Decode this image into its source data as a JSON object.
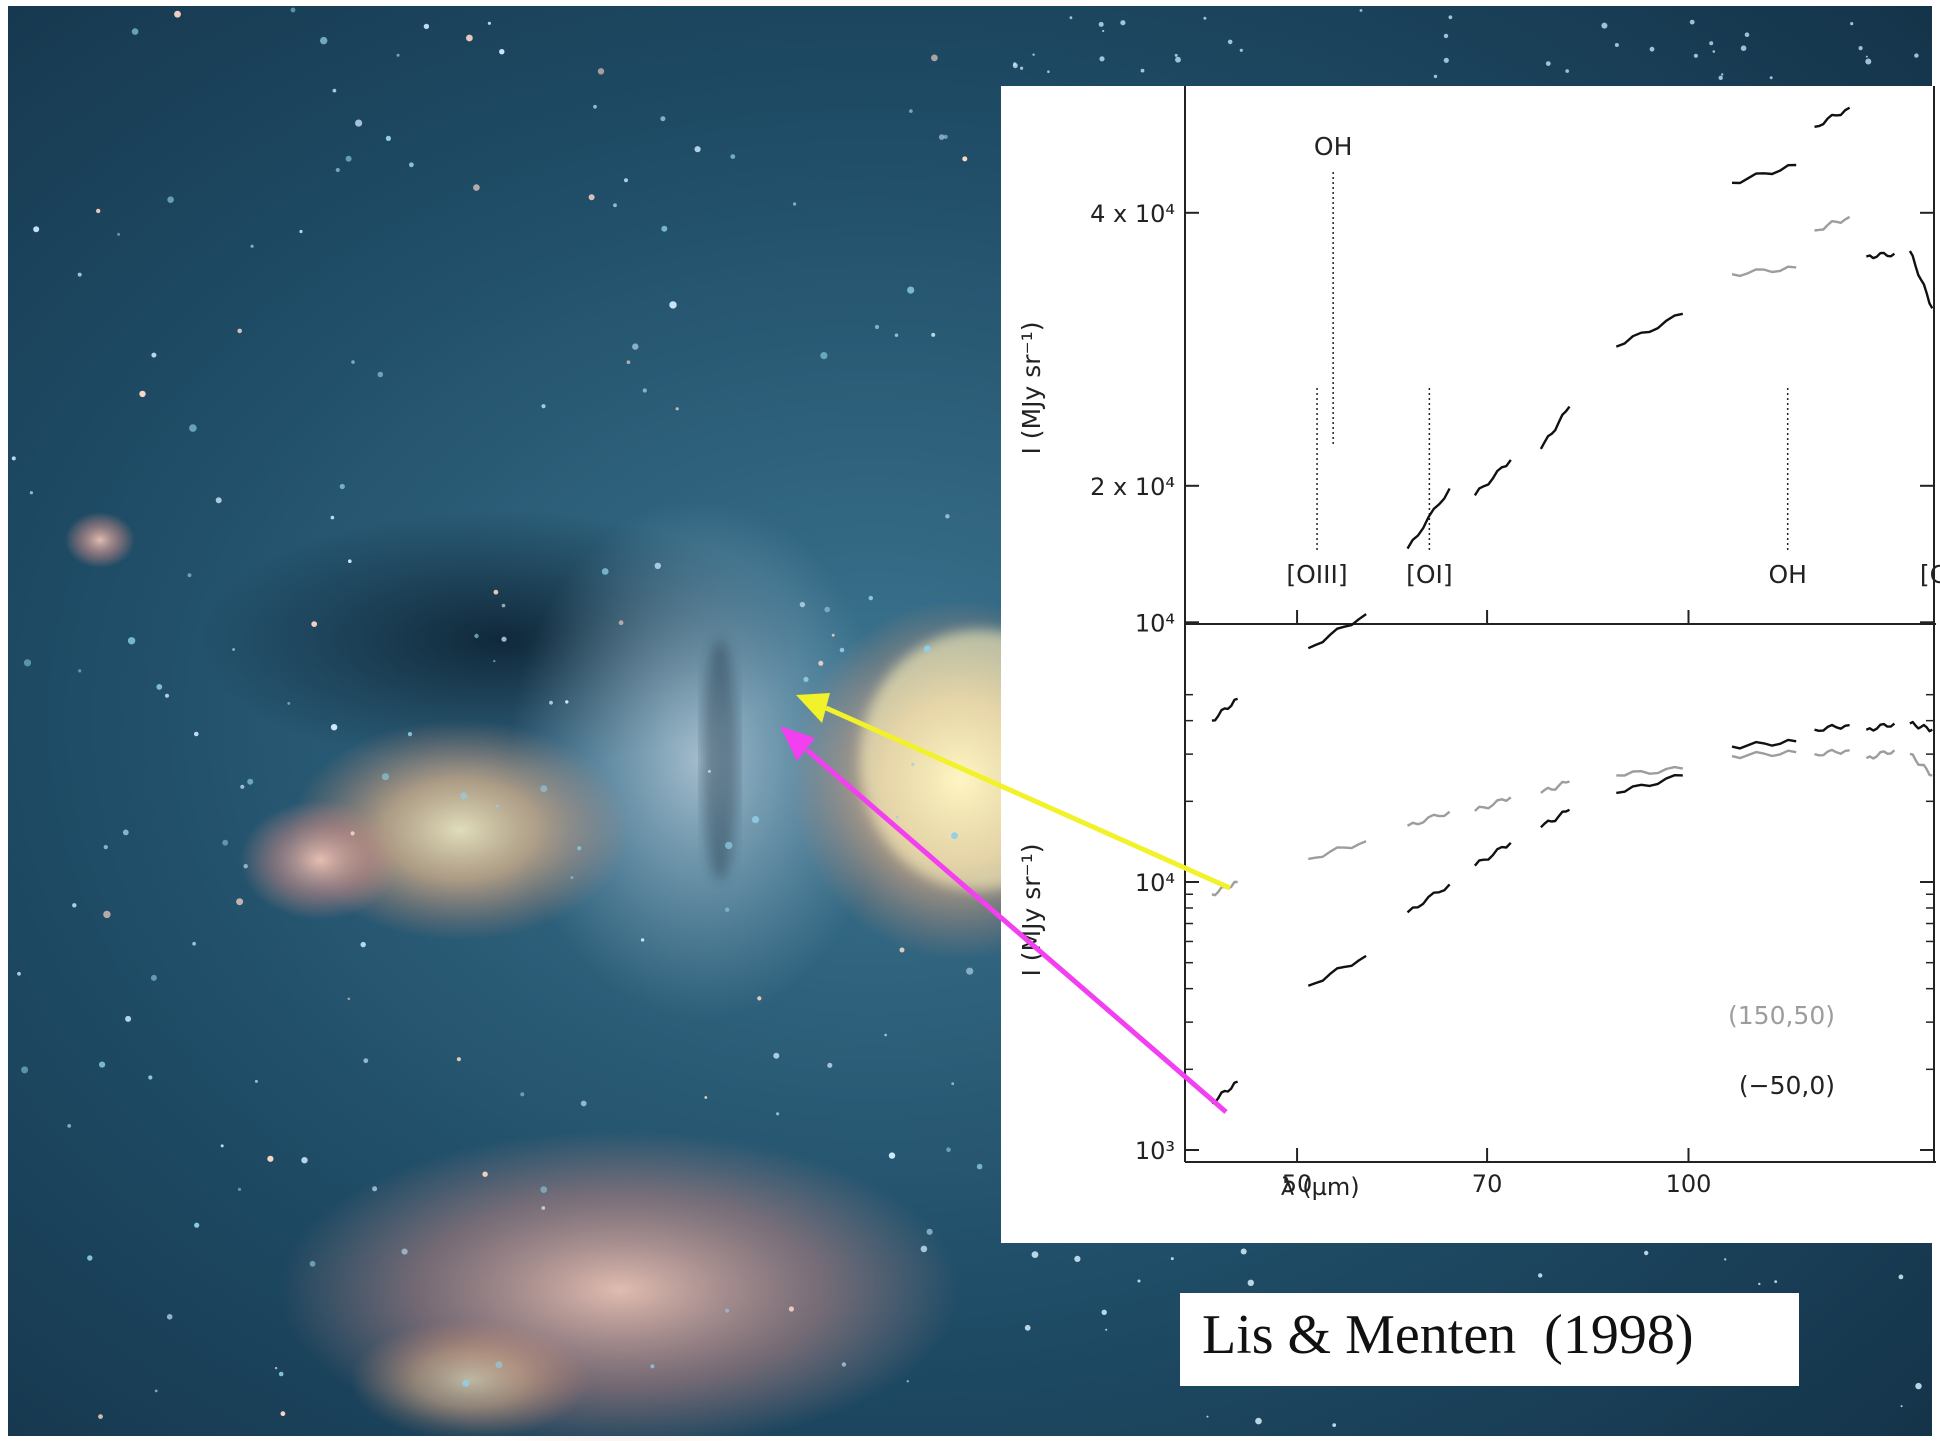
{
  "citation": "Lis & Menten  (1998)",
  "colors": {
    "map_background": "#1d4a63",
    "arrow_grey_position": "#f2f22a",
    "arrow_black_position": "#f23ff0",
    "series_black": "#111111",
    "series_grey": "#9d9d9d"
  },
  "chart_data": [
    {
      "type": "line",
      "panel": "top",
      "xscale": "log",
      "yscale": "linear",
      "xlim": [
        41,
        155
      ],
      "ylim": [
        1000,
        52000
      ],
      "ylabel": "I (MJy sr⁻¹)",
      "yticks": [
        {
          "value": 10000,
          "label": "10⁴"
        },
        {
          "value": 20000,
          "label": "2 x 10⁴"
        },
        {
          "value": 40000,
          "label": "4 x 10⁴"
        }
      ],
      "xticks": [
        50,
        70,
        100
      ],
      "line_markers": [
        {
          "label": "[OIII]",
          "x": 51.8,
          "position": "bottom"
        },
        {
          "label": "[OI]",
          "x": 63.2,
          "position": "bottom"
        },
        {
          "label": "OH",
          "x": 119.2,
          "position": "bottom"
        },
        {
          "label": "[CII]",
          "x": 157.7,
          "position": "bottom"
        },
        {
          "label": "OH",
          "x": 53.3,
          "position": "top"
        }
      ],
      "series": [
        {
          "color": "black",
          "segments": [
            {
              "x": [
                43.0,
                45.0
              ],
              "y": [
                2800,
                4400
              ]
            },
            {
              "x": [
                51.0,
                56.5
              ],
              "y": [
                8100,
                10600
              ]
            },
            {
              "x": [
                60.8,
                65.5
              ],
              "y": [
                15400,
                19800
              ]
            },
            {
              "x": [
                68.5,
                73.0
              ],
              "y": [
                19300,
                21900
              ]
            },
            {
              "x": [
                77.0,
                81.0
              ],
              "y": [
                22700,
                25800
              ]
            },
            {
              "x": [
                88.0,
                99.0
              ],
              "y": [
                30200,
                32600
              ]
            },
            {
              "x": [
                108.0,
                121.0
              ],
              "y": [
                42200,
                43500
              ]
            },
            {
              "x": [
                125.0,
                133.0
              ],
              "y": [
                46300,
                47700
              ]
            },
            {
              "x": [
                137.0,
                144.0
              ],
              "y": [
                36800,
                37000
              ]
            },
            {
              "x": [
                148.0,
                154.0
              ],
              "y": [
                37200,
                33000
              ]
            }
          ]
        },
        {
          "color": "grey",
          "segments": [
            {
              "x": [
                108.0,
                121.0
              ],
              "y": [
                35500,
                36000
              ]
            },
            {
              "x": [
                125.0,
                133.0
              ],
              "y": [
                38700,
                39700
              ]
            }
          ]
        }
      ]
    },
    {
      "type": "line",
      "panel": "bottom",
      "xscale": "log",
      "yscale": "log",
      "xlim": [
        41,
        155
      ],
      "ylim": [
        1000,
        50000
      ],
      "xlabel": "λ (µm)",
      "ylabel": "I (MJy sr⁻¹)",
      "yticks": [
        {
          "value": 1000,
          "label": "10³"
        },
        {
          "value": 10000,
          "label": "10⁴"
        }
      ],
      "xticks": [
        50,
        70,
        100
      ],
      "series": [
        {
          "name": "(150,50)",
          "color": "grey",
          "segments": [
            {
              "x": [
                43.0,
                45.0
              ],
              "y": [
                9000,
                10000
              ]
            },
            {
              "x": [
                51.0,
                56.5
              ],
              "y": [
                12200,
                14200
              ]
            },
            {
              "x": [
                60.8,
                65.5
              ],
              "y": [
                16200,
                18300
              ]
            },
            {
              "x": [
                68.5,
                73.0
              ],
              "y": [
                18400,
                20700
              ]
            },
            {
              "x": [
                77.0,
                81.0
              ],
              "y": [
                21500,
                23700
              ]
            },
            {
              "x": [
                88.0,
                99.0
              ],
              "y": [
                25000,
                26500
              ]
            },
            {
              "x": [
                108.0,
                121.0
              ],
              "y": [
                29500,
                30500
              ]
            },
            {
              "x": [
                125.0,
                133.0
              ],
              "y": [
                30000,
                31000
              ]
            },
            {
              "x": [
                137.0,
                144.0
              ],
              "y": [
                29000,
                31000
              ]
            },
            {
              "x": [
                148.0,
                154.0
              ],
              "y": [
                30000,
                25000
              ]
            }
          ]
        },
        {
          "name": "(−50,0)",
          "color": "black",
          "segments": [
            {
              "x": [
                43.0,
                45.0
              ],
              "y": [
                1500,
                1800
              ]
            },
            {
              "x": [
                51.0,
                56.5
              ],
              "y": [
                4100,
                5300
              ]
            },
            {
              "x": [
                60.8,
                65.5
              ],
              "y": [
                7700,
                9800
              ]
            },
            {
              "x": [
                68.5,
                73.0
              ],
              "y": [
                11500,
                14000
              ]
            },
            {
              "x": [
                77.0,
                81.0
              ],
              "y": [
                16000,
                18600
              ]
            },
            {
              "x": [
                88.0,
                99.0
              ],
              "y": [
                21500,
                25000
              ]
            },
            {
              "x": [
                108.0,
                121.0
              ],
              "y": [
                32000,
                33500
              ]
            },
            {
              "x": [
                125.0,
                133.0
              ],
              "y": [
                37000,
                38500
              ]
            },
            {
              "x": [
                137.0,
                144.0
              ],
              "y": [
                37000,
                39000
              ]
            },
            {
              "x": [
                148.0,
                154.0
              ],
              "y": [
                39000,
                37000
              ]
            }
          ]
        }
      ]
    }
  ]
}
